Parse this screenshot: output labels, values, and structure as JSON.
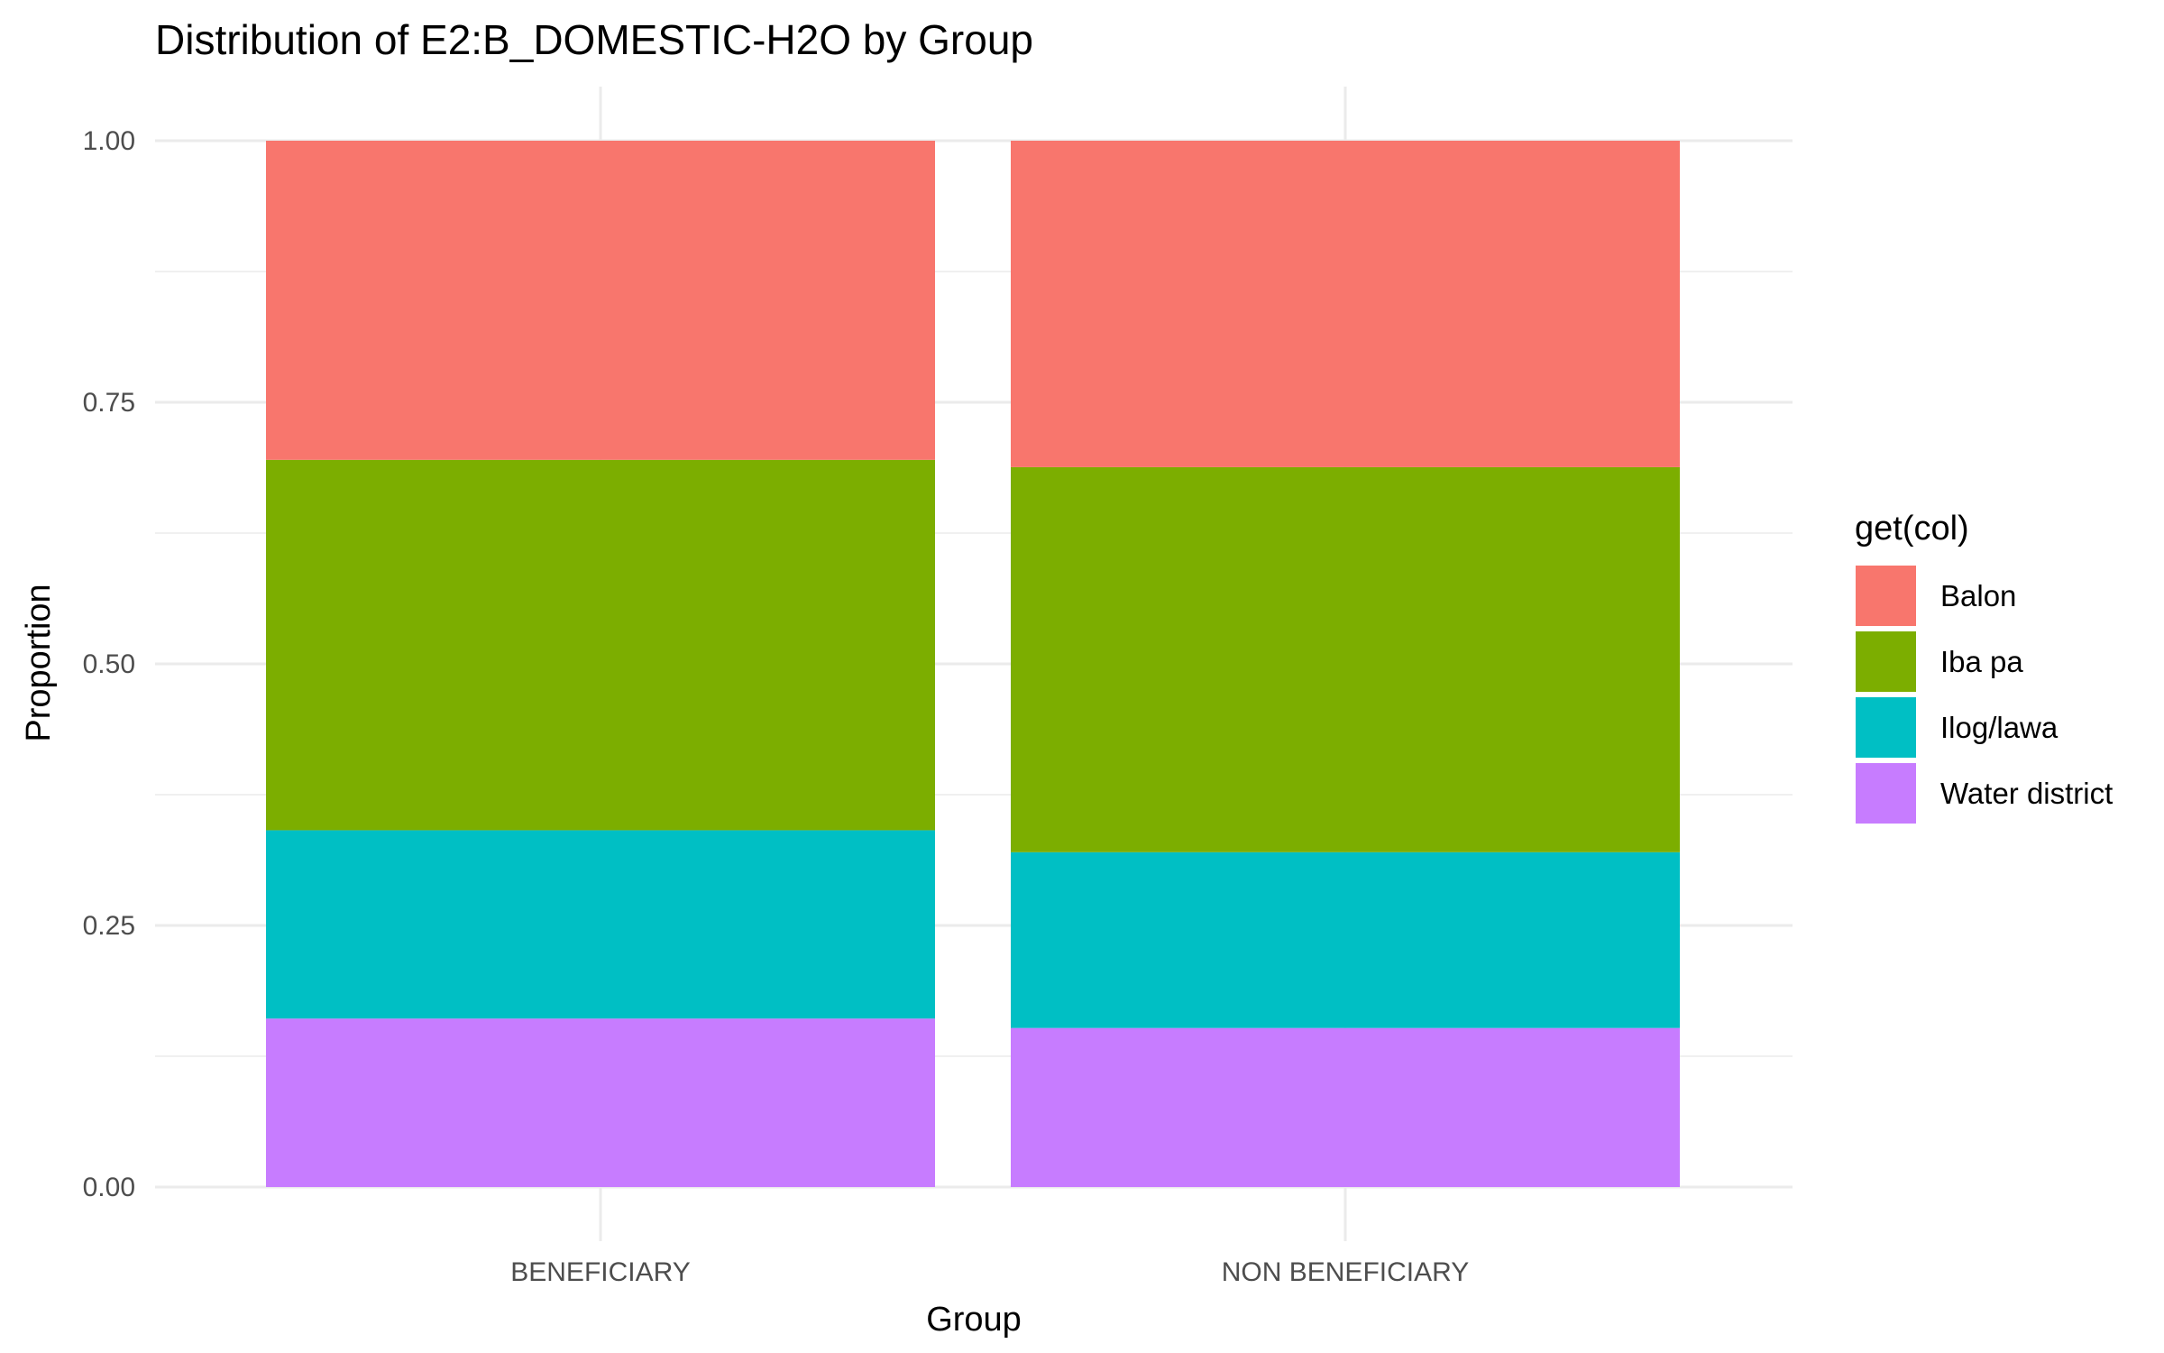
{
  "chart_data": {
    "type": "bar",
    "stacked": true,
    "title": "Distribution of E2:B_DOMESTIC-H2O by Group",
    "xlabel": "Group",
    "ylabel": "Proportion",
    "ylim": [
      0,
      1
    ],
    "y_ticks": [
      "0.00",
      "0.25",
      "0.50",
      "0.75",
      "1.00"
    ],
    "categories": [
      "BENEFICIARY",
      "NON BENEFICIARY"
    ],
    "legend_title": "get(col)",
    "legend_position": "right",
    "grid": true,
    "series": [
      {
        "name": "Water district",
        "color": "#C77CFF",
        "values": [
          0.161,
          0.152
        ]
      },
      {
        "name": "Ilog/lawa",
        "color": "#00BFC4",
        "values": [
          0.18,
          0.168
        ]
      },
      {
        "name": "Iba pa",
        "color": "#7CAE00",
        "values": [
          0.354,
          0.368
        ]
      },
      {
        "name": "Balon",
        "color": "#F8766D",
        "values": [
          0.305,
          0.312
        ]
      }
    ],
    "legend_order": [
      "Balon",
      "Iba pa",
      "Ilog/lawa",
      "Water district"
    ]
  }
}
